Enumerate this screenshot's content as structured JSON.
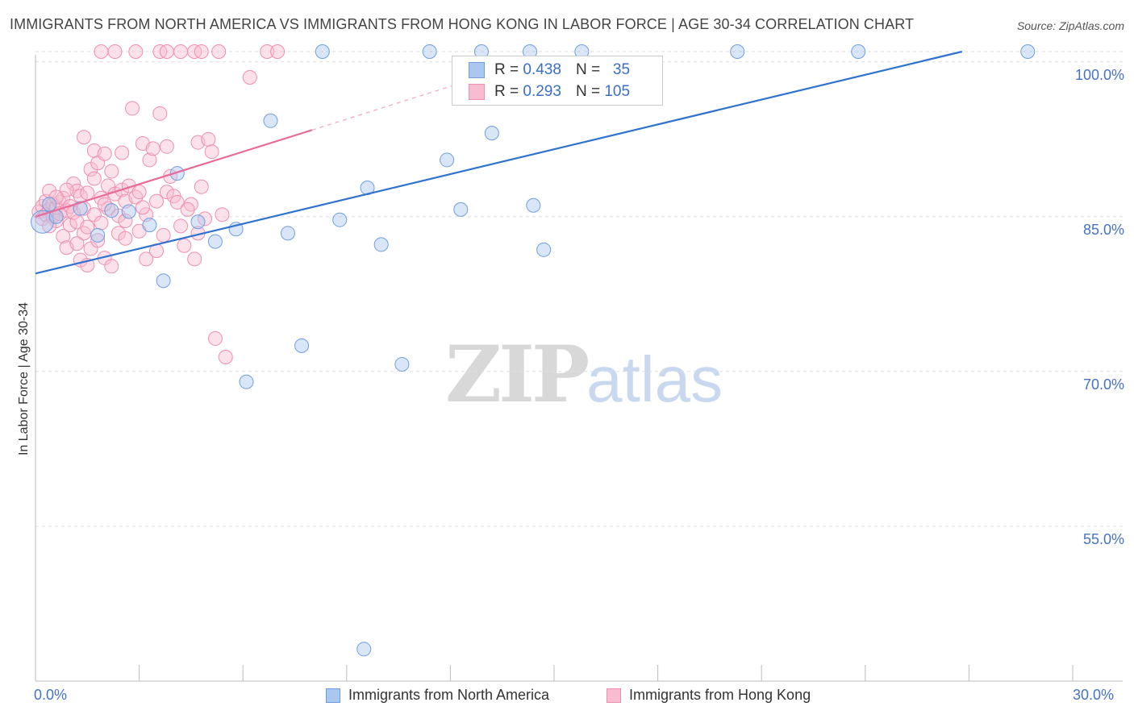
{
  "chart_data": {
    "type": "scatter",
    "title": "IMMIGRANTS FROM NORTH AMERICA VS IMMIGRANTS FROM HONG KONG IN LABOR FORCE | AGE 30-34 CORRELATION CHART",
    "source": "Source: ZipAtlas.com",
    "ylabel": "In Labor Force | Age 30-34",
    "xlim": [
      0,
      30
    ],
    "ylim": [
      40,
      101
    ],
    "y_ticks": [
      {
        "value": 100,
        "label": "100.0%"
      },
      {
        "value": 85,
        "label": "85.0%"
      },
      {
        "value": 70,
        "label": "70.0%"
      },
      {
        "value": 55,
        "label": "55.0%"
      }
    ],
    "x_tick_labels": {
      "min": "0.0%",
      "max": "30.0%"
    },
    "watermark": {
      "zip": "ZIP",
      "atlas": "atlas"
    },
    "stats": {
      "north_america": {
        "r_label": "R =",
        "r": "0.438",
        "n_label": "N =",
        "n": "35"
      },
      "hong_kong": {
        "r_label": "R =",
        "r": "0.293",
        "n_label": "N =",
        "n": "105"
      }
    },
    "series": [
      {
        "name": "Immigrants from North America",
        "color": "#6f9ee0",
        "fill": "#aac7f0",
        "trend": {
          "x0": 0,
          "y0": 79.5,
          "x1": 26.8,
          "y1": 101
        },
        "points": [
          [
            0.2,
            84.5
          ],
          [
            0.6,
            85.0
          ],
          [
            1.3,
            85.8
          ],
          [
            2.2,
            85.6
          ],
          [
            2.7,
            85.5
          ],
          [
            3.3,
            84.2
          ],
          [
            3.7,
            78.8
          ],
          [
            4.1,
            89.2
          ],
          [
            4.7,
            84.5
          ],
          [
            5.2,
            82.6
          ],
          [
            5.8,
            83.8
          ],
          [
            6.1,
            69.0
          ],
          [
            6.8,
            94.3
          ],
          [
            7.3,
            83.4
          ],
          [
            7.7,
            72.5
          ],
          [
            8.3,
            101.0
          ],
          [
            8.8,
            84.7
          ],
          [
            9.5,
            43.1
          ],
          [
            9.6,
            87.8
          ],
          [
            10.0,
            82.3
          ],
          [
            10.6,
            70.7
          ],
          [
            11.4,
            101.0
          ],
          [
            11.9,
            90.5
          ],
          [
            12.3,
            85.7
          ],
          [
            12.9,
            101.0
          ],
          [
            13.2,
            93.1
          ],
          [
            14.3,
            101.0
          ],
          [
            14.4,
            86.1
          ],
          [
            14.7,
            81.8
          ],
          [
            15.8,
            101.0
          ],
          [
            20.3,
            101.0
          ],
          [
            23.8,
            101.0
          ],
          [
            28.7,
            101.0
          ],
          [
            0.4,
            86.2
          ],
          [
            1.8,
            83.2
          ]
        ]
      },
      {
        "name": "Immigrants from Hong Kong",
        "color": "#ee8fb0",
        "fill": "#f7bcd0",
        "trend": {
          "x0": 0,
          "y0": 85.0,
          "x1": 8.0,
          "y1": 93.4
        },
        "trend_dashed": {
          "x0": 8.0,
          "y0": 93.4,
          "x1": 13.3,
          "y1": 99.0
        },
        "points": [
          [
            0.1,
            85.5
          ],
          [
            0.2,
            86.0
          ],
          [
            0.2,
            84.8
          ],
          [
            0.3,
            85.2
          ],
          [
            0.3,
            86.5
          ],
          [
            0.4,
            85.7
          ],
          [
            0.4,
            87.5
          ],
          [
            0.5,
            85.0
          ],
          [
            0.5,
            86.2
          ],
          [
            0.6,
            84.6
          ],
          [
            0.6,
            85.9
          ],
          [
            0.7,
            86.4
          ],
          [
            0.7,
            85.3
          ],
          [
            0.8,
            86.8
          ],
          [
            0.8,
            83.1
          ],
          [
            0.9,
            85.6
          ],
          [
            0.9,
            82.0
          ],
          [
            1.0,
            84.2
          ],
          [
            1.0,
            86.0
          ],
          [
            1.1,
            88.2
          ],
          [
            1.1,
            85.4
          ],
          [
            1.2,
            87.5
          ],
          [
            1.2,
            84.5
          ],
          [
            1.3,
            87.0
          ],
          [
            1.3,
            80.8
          ],
          [
            1.4,
            83.4
          ],
          [
            1.4,
            85.8
          ],
          [
            1.4,
            92.7
          ],
          [
            1.5,
            80.3
          ],
          [
            1.5,
            87.3
          ],
          [
            1.6,
            89.6
          ],
          [
            1.6,
            81.9
          ],
          [
            1.7,
            85.2
          ],
          [
            1.7,
            91.4
          ],
          [
            1.8,
            90.2
          ],
          [
            1.8,
            82.7
          ],
          [
            1.9,
            84.4
          ],
          [
            1.9,
            86.8
          ],
          [
            2.0,
            81.0
          ],
          [
            2.0,
            91.1
          ],
          [
            2.1,
            88.0
          ],
          [
            2.1,
            85.8
          ],
          [
            2.2,
            80.2
          ],
          [
            2.2,
            89.4
          ],
          [
            2.3,
            87.2
          ],
          [
            2.4,
            85.1
          ],
          [
            2.4,
            83.4
          ],
          [
            2.5,
            87.6
          ],
          [
            2.6,
            86.5
          ],
          [
            2.6,
            82.9
          ],
          [
            2.7,
            88.0
          ],
          [
            2.8,
            95.5
          ],
          [
            2.9,
            86.9
          ],
          [
            3.0,
            87.4
          ],
          [
            3.0,
            83.6
          ],
          [
            3.1,
            92.1
          ],
          [
            3.2,
            85.2
          ],
          [
            3.2,
            80.9
          ],
          [
            3.3,
            90.5
          ],
          [
            3.4,
            91.6
          ],
          [
            3.5,
            86.5
          ],
          [
            3.5,
            81.7
          ],
          [
            3.6,
            95.0
          ],
          [
            3.7,
            83.2
          ],
          [
            3.8,
            87.4
          ],
          [
            3.8,
            91.8
          ],
          [
            3.9,
            88.9
          ],
          [
            4.0,
            87.0
          ],
          [
            4.1,
            86.4
          ],
          [
            4.2,
            84.1
          ],
          [
            4.3,
            82.2
          ],
          [
            4.5,
            86.2
          ],
          [
            4.6,
            80.9
          ],
          [
            4.7,
            83.4
          ],
          [
            4.7,
            92.2
          ],
          [
            4.8,
            87.9
          ],
          [
            4.9,
            84.8
          ],
          [
            5.0,
            92.5
          ],
          [
            5.1,
            91.3
          ],
          [
            5.2,
            73.2
          ],
          [
            5.4,
            85.2
          ],
          [
            5.5,
            71.4
          ],
          [
            1.9,
            101.0
          ],
          [
            2.3,
            101.0
          ],
          [
            2.9,
            101.0
          ],
          [
            3.6,
            101.0
          ],
          [
            3.8,
            101.0
          ],
          [
            4.2,
            101.0
          ],
          [
            4.6,
            101.0
          ],
          [
            4.8,
            101.0
          ],
          [
            5.3,
            101.0
          ],
          [
            6.2,
            98.5
          ],
          [
            6.7,
            101.0
          ],
          [
            7.0,
            101.0
          ],
          [
            0.4,
            84.1
          ],
          [
            0.9,
            87.6
          ],
          [
            1.5,
            84.0
          ],
          [
            2.6,
            84.6
          ],
          [
            3.1,
            85.9
          ],
          [
            4.4,
            85.7
          ],
          [
            1.2,
            82.4
          ],
          [
            2.0,
            86.2
          ],
          [
            0.6,
            86.9
          ],
          [
            1.7,
            88.7
          ],
          [
            2.5,
            91.2
          ]
        ]
      }
    ]
  }
}
